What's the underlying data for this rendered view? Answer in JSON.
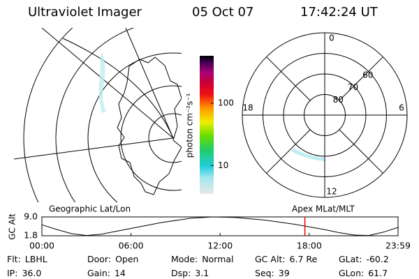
{
  "header": {
    "title": "Ultraviolet Imager",
    "date": "05 Oct 07",
    "time": "17:42:24 UT"
  },
  "colorbar": {
    "label": "photon cm⁻²s⁻¹",
    "clim": [
      3.5,
      580
    ],
    "log": true,
    "ticks": [
      10,
      100
    ]
  },
  "polar": {
    "rlim": [
      90,
      50
    ],
    "rticks": [
      60,
      70,
      80
    ],
    "mlt_ticks": [
      12,
      6,
      0,
      18
    ]
  },
  "map_label": "Geographic Lat/Lon",
  "polar_label": "Apex MLat/MLT",
  "altitude": {
    "ylabel": "GC Alt",
    "ylim": [
      1.8,
      9.0
    ],
    "yticks": [
      {
        "value": 9.0,
        "label": "9.0"
      },
      1.8
    ],
    "xlim": [
      0,
      23.98
    ],
    "xticks": [
      {
        "value": 0,
        "label": "00:00"
      },
      {
        "value": 6,
        "label": "06:00"
      },
      {
        "value": 12,
        "label": "12:00"
      },
      {
        "value": 18,
        "label": "18:00"
      },
      {
        "value": 23.98,
        "label": "23:59"
      }
    ],
    "x": [
      0,
      1,
      2,
      3,
      4,
      6,
      8,
      10,
      11.5,
      13,
      15,
      17,
      19,
      20,
      21,
      22,
      23,
      23.98
    ],
    "values": [
      6.0,
      4.2,
      2.6,
      1.9,
      2.4,
      4.6,
      6.8,
      8.5,
      9.0,
      8.8,
      7.8,
      6.2,
      4.2,
      3.0,
      2.1,
      1.9,
      3.2,
      5.0
    ],
    "current_time": 17.707
  },
  "footer": [
    [
      {
        "label": "Flt:",
        "value": "LBHL"
      },
      {
        "label": "Door:",
        "value": "Open"
      },
      {
        "label": "Mode:",
        "value": "Normal"
      },
      {
        "label": "GC Alt:",
        "value": "6.7 Re"
      },
      {
        "label": "GLat:",
        "value": "-60.2"
      }
    ],
    [
      {
        "label": "IP:",
        "value": "36.0"
      },
      {
        "label": "Gain:",
        "value": "14"
      },
      {
        "label": "Dsp:",
        "value": "3.1"
      },
      {
        "label": "Seq:",
        "value": "39"
      },
      {
        "label": "GLon:",
        "value": "61.7"
      }
    ]
  ]
}
